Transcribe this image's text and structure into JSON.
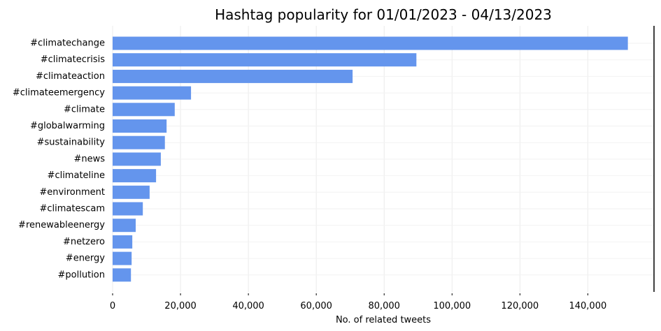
{
  "chart_data": {
    "type": "bar",
    "orientation": "horizontal",
    "title": "Hashtag popularity for 01/01/2023 - 04/13/2023",
    "xlabel": "No. of related tweets",
    "ylabel": "",
    "categories": [
      "#climatechange",
      "#climatecrisis",
      "#climateaction",
      "#climateemergency",
      "#climate",
      "#globalwarming",
      "#sustainability",
      "#news",
      "#climateline",
      "#environment",
      "#climatescam",
      "#renewableenergy",
      "#netzero",
      "#energy",
      "#pollution"
    ],
    "values": [
      151800,
      89500,
      70700,
      23100,
      18300,
      15900,
      15400,
      14200,
      12800,
      10900,
      8900,
      6800,
      5800,
      5600,
      5400
    ],
    "xlim": [
      0,
      159500
    ],
    "xticks": [
      0,
      20000,
      40000,
      60000,
      80000,
      100000,
      120000,
      140000
    ],
    "xtick_labels": [
      "0",
      "20,000",
      "40,000",
      "60,000",
      "80,000",
      "100,000",
      "120,000",
      "140,000"
    ],
    "bar_color": "#6495ED",
    "grid": true,
    "legend": "none"
  }
}
